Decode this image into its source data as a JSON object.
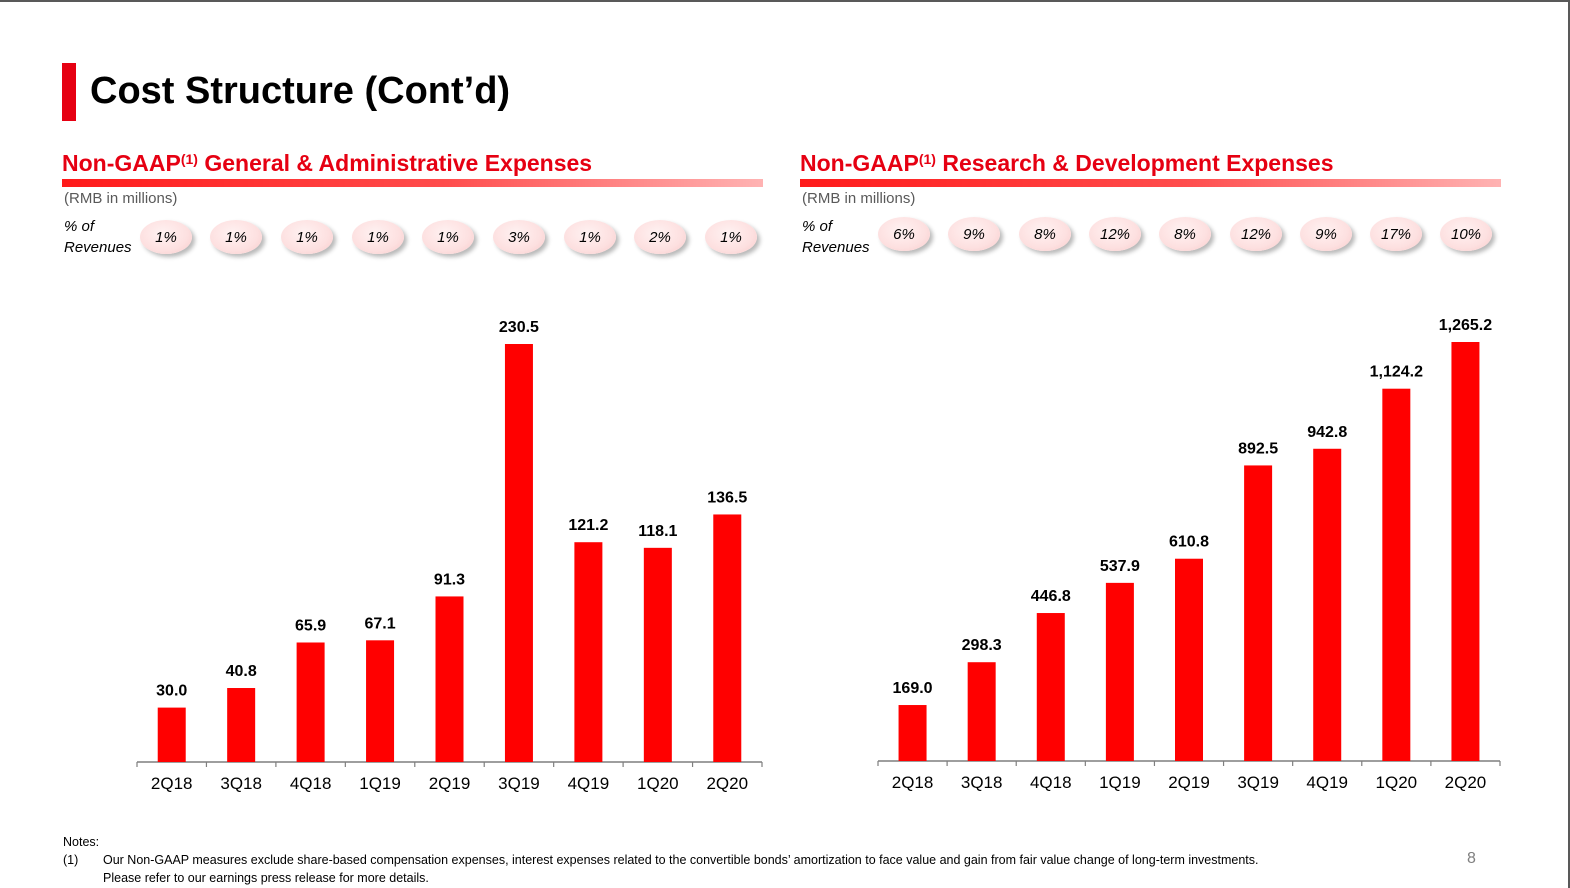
{
  "slide": {
    "title": "Cost Structure (Cont’d)",
    "page_number": "8",
    "notes_heading": "Notes:",
    "note_number": "(1)",
    "note_line1": "Our Non-GAAP measures exclude share-based compensation expenses, interest expenses related to the convertible bonds’ amortization to face value and gain from fair value change of long-term investments.",
    "note_line2": "Please refer to our earnings press release for more details."
  },
  "panels": {
    "left": {
      "title_prefix": "Non-GAAP",
      "title_sup": "(1)",
      "title_suffix": " General & Administrative Expenses",
      "units": "(RMB in millions)",
      "pct_label_line1": "% of",
      "pct_label_line2": "Revenues",
      "pct_revenues": [
        "1%",
        "1%",
        "1%",
        "1%",
        "1%",
        "3%",
        "1%",
        "2%",
        "1%"
      ]
    },
    "right": {
      "title_prefix": "Non-GAAP",
      "title_sup": "(1)",
      "title_suffix": " Research & Development Expenses",
      "units": "(RMB in millions)",
      "pct_label_line1": "% of",
      "pct_label_line2": "Revenues",
      "pct_revenues": [
        "6%",
        "9%",
        "8%",
        "12%",
        "8%",
        "12%",
        "9%",
        "17%",
        "10%"
      ]
    }
  },
  "colors": {
    "accent": "#e60012",
    "bar": "#ff0000",
    "axis": "#7f7f7f"
  },
  "chart_data": [
    {
      "type": "bar",
      "title": "Non-GAAP(1) General & Administrative Expenses",
      "ylabel": "RMB in millions",
      "categories": [
        "2Q18",
        "3Q18",
        "4Q18",
        "1Q19",
        "2Q19",
        "3Q19",
        "4Q19",
        "1Q20",
        "2Q20"
      ],
      "values": [
        30.0,
        40.8,
        65.9,
        67.1,
        91.3,
        230.5,
        121.2,
        118.1,
        136.5
      ],
      "labels": [
        "30.0",
        "40.8",
        "65.9",
        "67.1",
        "91.3",
        "230.5",
        "121.2",
        "118.1",
        "136.5"
      ],
      "ylim": [
        0,
        230.5
      ],
      "grid": false
    },
    {
      "type": "bar",
      "title": "Non-GAAP(1) Research & Development Expenses",
      "ylabel": "RMB in millions",
      "categories": [
        "2Q18",
        "3Q18",
        "4Q18",
        "1Q19",
        "2Q19",
        "3Q19",
        "4Q19",
        "1Q20",
        "2Q20"
      ],
      "values": [
        169.0,
        298.3,
        446.8,
        537.9,
        610.8,
        892.5,
        942.8,
        1124.2,
        1265.2
      ],
      "labels": [
        "169.0",
        "298.3",
        "446.8",
        "537.9",
        "610.8",
        "892.5",
        "942.8",
        "1,124.2",
        "1,265.2"
      ],
      "ylim": [
        0,
        1265.2
      ],
      "grid": false
    }
  ]
}
